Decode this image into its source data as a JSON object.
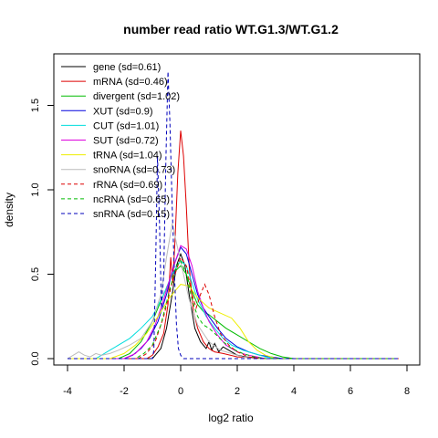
{
  "chart_data": {
    "type": "line",
    "title": "number read ratio WT.G1.3/WT.G1.2",
    "xlabel": "log2 ratio",
    "ylabel": "density",
    "xlim": [
      -4,
      8
    ],
    "ylim": [
      0,
      1.8
    ],
    "x_ticks": [
      "-4",
      "-2",
      "0",
      "2",
      "4",
      "6",
      "8"
    ],
    "y_ticks": [
      "0.0",
      "0.5",
      "1.0",
      "1.5"
    ],
    "legend_position": "top-left",
    "series": [
      {
        "name": "gene (sd=0.61)",
        "color": "#000000",
        "dash": "solid",
        "points": [
          [
            -4,
            0
          ],
          [
            -1,
            0
          ],
          [
            -0.9,
            0.02
          ],
          [
            -0.7,
            0.06
          ],
          [
            -0.5,
            0.18
          ],
          [
            -0.3,
            0.38
          ],
          [
            -0.15,
            0.55
          ],
          [
            0,
            0.62
          ],
          [
            0.15,
            0.55
          ],
          [
            0.3,
            0.38
          ],
          [
            0.5,
            0.18
          ],
          [
            0.7,
            0.1
          ],
          [
            0.9,
            0.06
          ],
          [
            1.0,
            0.1
          ],
          [
            1.1,
            0.05
          ],
          [
            1.2,
            0.09
          ],
          [
            1.35,
            0.04
          ],
          [
            1.5,
            0.07
          ],
          [
            1.7,
            0.05
          ],
          [
            2.0,
            0.02
          ],
          [
            2.3,
            0.01
          ],
          [
            3,
            0
          ],
          [
            7.7,
            0
          ]
        ]
      },
      {
        "name": "mRNA (sd=0.46)",
        "color": "#dd0000",
        "dash": "solid",
        "points": [
          [
            -4,
            0
          ],
          [
            -1.2,
            0
          ],
          [
            -1.0,
            0.02
          ],
          [
            -0.8,
            0.07
          ],
          [
            -0.6,
            0.15
          ],
          [
            -0.45,
            0.32
          ],
          [
            -0.35,
            0.6
          ],
          [
            -0.28,
            0.45
          ],
          [
            -0.2,
            0.7
          ],
          [
            -0.1,
            1.1
          ],
          [
            0,
            1.35
          ],
          [
            0.1,
            1.2
          ],
          [
            0.2,
            0.9
          ],
          [
            0.3,
            0.55
          ],
          [
            0.45,
            0.28
          ],
          [
            0.6,
            0.18
          ],
          [
            0.8,
            0.1
          ],
          [
            1.0,
            0.06
          ],
          [
            1.2,
            0.04
          ],
          [
            1.5,
            0.03
          ],
          [
            2,
            0.01
          ],
          [
            3,
            0
          ],
          [
            7.7,
            0
          ]
        ]
      },
      {
        "name": "divergent (sd=1.02)",
        "color": "#00bb00",
        "dash": "solid",
        "points": [
          [
            -4,
            0
          ],
          [
            -2.2,
            0
          ],
          [
            -1.8,
            0.03
          ],
          [
            -1.4,
            0.1
          ],
          [
            -1.0,
            0.22
          ],
          [
            -0.6,
            0.38
          ],
          [
            -0.3,
            0.5
          ],
          [
            0,
            0.55
          ],
          [
            0.2,
            0.5
          ],
          [
            0.4,
            0.4
          ],
          [
            0.6,
            0.32
          ],
          [
            0.8,
            0.28
          ],
          [
            1.0,
            0.26
          ],
          [
            1.3,
            0.22
          ],
          [
            1.6,
            0.18
          ],
          [
            2.0,
            0.14
          ],
          [
            2.4,
            0.1
          ],
          [
            2.8,
            0.06
          ],
          [
            3.2,
            0.03
          ],
          [
            3.6,
            0.01
          ],
          [
            4,
            0
          ],
          [
            7.7,
            0
          ]
        ]
      },
      {
        "name": "XUT (sd=0.9)",
        "color": "#0000dd",
        "dash": "solid",
        "points": [
          [
            -4,
            0
          ],
          [
            -2,
            0
          ],
          [
            -1.7,
            0.02
          ],
          [
            -1.4,
            0.06
          ],
          [
            -1.1,
            0.12
          ],
          [
            -0.8,
            0.22
          ],
          [
            -0.5,
            0.38
          ],
          [
            -0.25,
            0.55
          ],
          [
            0,
            0.66
          ],
          [
            0.2,
            0.62
          ],
          [
            0.4,
            0.5
          ],
          [
            0.6,
            0.38
          ],
          [
            0.8,
            0.3
          ],
          [
            1.0,
            0.25
          ],
          [
            1.3,
            0.18
          ],
          [
            1.6,
            0.12
          ],
          [
            2.0,
            0.07
          ],
          [
            2.4,
            0.04
          ],
          [
            2.8,
            0.02
          ],
          [
            3.2,
            0.01
          ],
          [
            3.6,
            0
          ],
          [
            7.7,
            0
          ]
        ]
      },
      {
        "name": "CUT (sd=1.01)",
        "color": "#00dddd",
        "dash": "solid",
        "points": [
          [
            -4,
            0
          ],
          [
            -3,
            0
          ],
          [
            -2.6,
            0.04
          ],
          [
            -2.2,
            0.08
          ],
          [
            -1.8,
            0.12
          ],
          [
            -1.4,
            0.18
          ],
          [
            -1.0,
            0.25
          ],
          [
            -0.6,
            0.38
          ],
          [
            -0.3,
            0.5
          ],
          [
            0,
            0.58
          ],
          [
            0.2,
            0.55
          ],
          [
            0.4,
            0.45
          ],
          [
            0.6,
            0.35
          ],
          [
            0.9,
            0.25
          ],
          [
            1.2,
            0.18
          ],
          [
            1.5,
            0.12
          ],
          [
            1.8,
            0.08
          ],
          [
            2.2,
            0.05
          ],
          [
            2.6,
            0.03
          ],
          [
            3,
            0.01
          ],
          [
            3.4,
            0
          ],
          [
            7.7,
            0
          ]
        ]
      },
      {
        "name": "SUT (sd=0.72)",
        "color": "#dd00dd",
        "dash": "solid",
        "points": [
          [
            -4,
            0
          ],
          [
            -2,
            0
          ],
          [
            -1.6,
            0.03
          ],
          [
            -1.2,
            0.1
          ],
          [
            -0.9,
            0.2
          ],
          [
            -0.6,
            0.35
          ],
          [
            -0.3,
            0.52
          ],
          [
            0,
            0.67
          ],
          [
            0.2,
            0.65
          ],
          [
            0.4,
            0.55
          ],
          [
            0.6,
            0.4
          ],
          [
            0.8,
            0.3
          ],
          [
            1.0,
            0.22
          ],
          [
            1.3,
            0.14
          ],
          [
            1.6,
            0.08
          ],
          [
            2.0,
            0.04
          ],
          [
            2.4,
            0.02
          ],
          [
            3,
            0
          ],
          [
            7.7,
            0
          ]
        ]
      },
      {
        "name": "tRNA (sd=1.04)",
        "color": "#eeee00",
        "dash": "solid",
        "points": [
          [
            -4,
            0
          ],
          [
            -2.5,
            0
          ],
          [
            -2.0,
            0.03
          ],
          [
            -1.6,
            0.08
          ],
          [
            -1.2,
            0.15
          ],
          [
            -0.8,
            0.25
          ],
          [
            -0.4,
            0.36
          ],
          [
            0,
            0.44
          ],
          [
            0.3,
            0.43
          ],
          [
            0.6,
            0.36
          ],
          [
            1.0,
            0.3
          ],
          [
            1.4,
            0.27
          ],
          [
            1.8,
            0.24
          ],
          [
            2.1,
            0.18
          ],
          [
            2.4,
            0.1
          ],
          [
            2.7,
            0.05
          ],
          [
            3,
            0.02
          ],
          [
            3.4,
            0
          ],
          [
            7.7,
            0
          ]
        ]
      },
      {
        "name": "snoRNA (sd=0.73)",
        "color": "#bbbbbb",
        "dash": "solid",
        "points": [
          [
            -4,
            0
          ],
          [
            -3.8,
            0.02
          ],
          [
            -3.6,
            0.04
          ],
          [
            -3.4,
            0.02
          ],
          [
            -3.2,
            0.01
          ],
          [
            -3.0,
            0.03
          ],
          [
            -2.8,
            0.02
          ],
          [
            -2.5,
            0.03
          ],
          [
            -2.2,
            0.05
          ],
          [
            -1.8,
            0.08
          ],
          [
            -1.4,
            0.12
          ],
          [
            -1.0,
            0.22
          ],
          [
            -0.7,
            0.38
          ],
          [
            -0.5,
            0.6
          ],
          [
            -0.3,
            0.8
          ],
          [
            -0.1,
            0.65
          ],
          [
            0.1,
            0.5
          ],
          [
            0.3,
            0.35
          ],
          [
            0.6,
            0.2
          ],
          [
            1.0,
            0.1
          ],
          [
            1.4,
            0.05
          ],
          [
            1.8,
            0.03
          ],
          [
            2.2,
            0.01
          ],
          [
            2.6,
            0
          ],
          [
            7.7,
            0
          ]
        ]
      },
      {
        "name": "rRNA (sd=0.69)",
        "color": "#dd0000",
        "dash": "dashed",
        "points": [
          [
            -4,
            0
          ],
          [
            -1.5,
            0
          ],
          [
            -1.2,
            0.03
          ],
          [
            -0.9,
            0.1
          ],
          [
            -0.6,
            0.25
          ],
          [
            -0.3,
            0.45
          ],
          [
            0,
            0.6
          ],
          [
            0.2,
            0.55
          ],
          [
            0.4,
            0.38
          ],
          [
            0.55,
            0.3
          ],
          [
            0.7,
            0.38
          ],
          [
            0.85,
            0.44
          ],
          [
            1.0,
            0.38
          ],
          [
            1.2,
            0.25
          ],
          [
            1.4,
            0.15
          ],
          [
            1.7,
            0.08
          ],
          [
            2,
            0.04
          ],
          [
            2.4,
            0.01
          ],
          [
            2.8,
            0
          ],
          [
            7.7,
            0
          ]
        ]
      },
      {
        "name": "ncRNA (sd=0.65)",
        "color": "#00bb00",
        "dash": "dashed",
        "points": [
          [
            -4,
            0
          ],
          [
            -1.6,
            0
          ],
          [
            -1.3,
            0.03
          ],
          [
            -1.0,
            0.08
          ],
          [
            -0.7,
            0.2
          ],
          [
            -0.4,
            0.4
          ],
          [
            -0.15,
            0.55
          ],
          [
            0,
            0.58
          ],
          [
            0.2,
            0.5
          ],
          [
            0.4,
            0.35
          ],
          [
            0.6,
            0.25
          ],
          [
            0.8,
            0.2
          ],
          [
            1.0,
            0.18
          ],
          [
            1.2,
            0.15
          ],
          [
            1.5,
            0.1
          ],
          [
            1.8,
            0.06
          ],
          [
            2.2,
            0.03
          ],
          [
            2.6,
            0.01
          ],
          [
            3,
            0
          ],
          [
            7.7,
            0
          ]
        ]
      },
      {
        "name": "snRNA (sd=0.15)",
        "color": "#0000bb",
        "dash": "dashed",
        "points": [
          [
            -4,
            0
          ],
          [
            -1.0,
            0
          ],
          [
            -0.95,
            0.05
          ],
          [
            -0.88,
            0.6
          ],
          [
            -0.82,
            1.2
          ],
          [
            -0.75,
            0.8
          ],
          [
            -0.68,
            0.3
          ],
          [
            -0.6,
            0.5
          ],
          [
            -0.52,
            1.2
          ],
          [
            -0.45,
            1.7
          ],
          [
            -0.38,
            1.4
          ],
          [
            -0.3,
            0.9
          ],
          [
            -0.22,
            0.5
          ],
          [
            -0.15,
            0.2
          ],
          [
            -0.08,
            0.06
          ],
          [
            0,
            0.02
          ],
          [
            0.1,
            0
          ],
          [
            7.7,
            0
          ]
        ]
      }
    ]
  }
}
